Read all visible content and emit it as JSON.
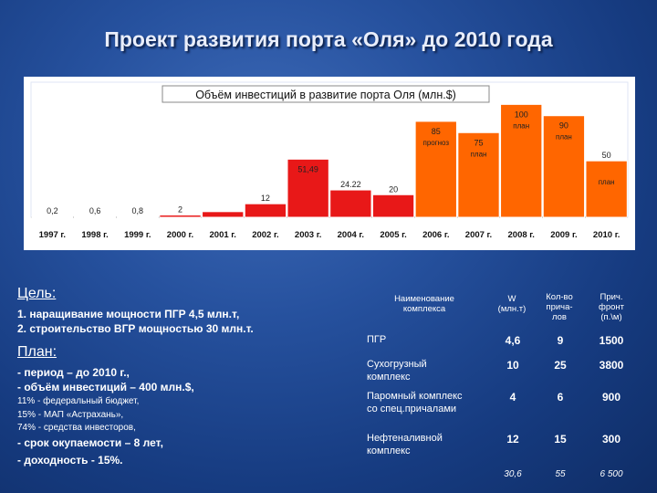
{
  "title": "Проект развития порта «Оля» до 2010 года",
  "chart_data": {
    "type": "bar",
    "title": "Объём инвестиций в развитие порта Оля (млн.$)",
    "categories": [
      "1997 г.",
      "1998 г.",
      "1999 г.",
      "2000 г.",
      "2001 г.",
      "2002 г.",
      "2003 г.",
      "2004 г.",
      "2005 г.",
      "2006 г.",
      "2007 г.",
      "2008 г.",
      "2009 г.",
      "2010 г."
    ],
    "values": [
      0.2,
      0.6,
      0.8,
      2,
      5,
      12,
      51.49,
      24.22,
      20,
      85,
      75,
      100,
      90,
      50
    ],
    "data_labels": [
      "0,2",
      "0,6",
      "0,8",
      "2",
      "",
      "12",
      "51,49",
      "24.22",
      "20",
      "85",
      "75",
      "100",
      "90",
      "50"
    ],
    "bar_notes": [
      "",
      "",
      "",
      "",
      "",
      "",
      "",
      "",
      "",
      "прогноз",
      "план",
      "план",
      "план",
      "план"
    ],
    "colors": {
      "actual": "#e81818",
      "planned": "#ff6600",
      "plot_bg": "#ffffff",
      "outline": "#ffffff"
    },
    "ylim": [
      0,
      110
    ],
    "grid": false
  },
  "goal": {
    "heading": "Цель:",
    "lines": [
      "1. наращивание мощности ПГР 4,5 млн.т,",
      "2. строительство ВГР мощностью 30 млн.т."
    ]
  },
  "plan": {
    "heading": "План:",
    "lines": [
      "- период – до 2010 г.,",
      "- объём инвестиций – 400 млн.$,",
      "11% - федеральный бюджет,",
      "15% - МАП «Астрахань»,",
      "74% - средства инвесторов,",
      "- срок окупаемости – 8 лет,",
      "- доходность - 15%."
    ]
  },
  "table": {
    "headers": [
      "Наименование комплекса",
      "W (млн.т)",
      "Кол-во прича- лов",
      "Прич. фронт (п.\\м)"
    ],
    "header_lines": [
      [
        "Наименование",
        "комплекса"
      ],
      [
        "W",
        "(млн.т)"
      ],
      [
        "Кол-во",
        "прича-",
        "лов"
      ],
      [
        "Прич.",
        "фронт",
        "(п.\\м)"
      ]
    ],
    "rows": [
      {
        "name": "ПГР",
        "name_lines": [
          "ПГР"
        ],
        "w": "4,6",
        "berths": "9",
        "front": "1500"
      },
      {
        "name": "Сухогрузный комплекс",
        "name_lines": [
          "Сухогрузный",
          "комплекс"
        ],
        "w": "10",
        "berths": "25",
        "front": "3800"
      },
      {
        "name": "Паромный комплекс со спец.причалами",
        "name_lines": [
          "Паромный комплекс",
          "со спец.причалами"
        ],
        "w": "4",
        "berths": "6",
        "front": "900"
      },
      {
        "name": "Нефтеналивной комплекс",
        "name_lines": [
          "Нефтеналивной",
          "комплекс"
        ],
        "w": "12",
        "berths": "15",
        "front": "300"
      }
    ],
    "totals": {
      "w": "30,6",
      "berths": "55",
      "front": "6 500"
    }
  }
}
